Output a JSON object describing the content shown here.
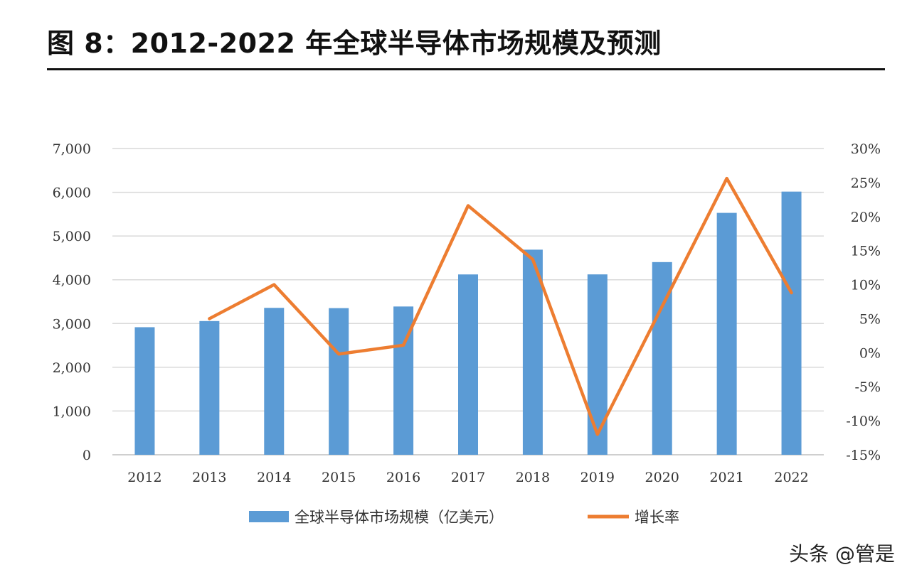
{
  "chart_data": {
    "type": "bar",
    "title": "图 8：2012-2022 年全球半导体市场规模及预测",
    "categories": [
      "2012",
      "2013",
      "2014",
      "2015",
      "2016",
      "2017",
      "2018",
      "2019",
      "2020",
      "2021",
      "2022"
    ],
    "series": [
      {
        "name": "全球半导体市场规模（亿美元）",
        "type": "bar",
        "axis": "left",
        "color": "#5b9bd5",
        "values": [
          2916,
          3056,
          3358,
          3352,
          3389,
          4122,
          4688,
          4123,
          4404,
          5529,
          6015
        ]
      },
      {
        "name": "增长率",
        "type": "line",
        "axis": "right",
        "color": "#ed7d31",
        "values": [
          null,
          5.0,
          10.0,
          -0.2,
          1.1,
          21.6,
          13.7,
          -12.0,
          6.8,
          25.6,
          8.8
        ]
      }
    ],
    "left_axis": {
      "ylim": [
        0,
        7000
      ],
      "ticks": [
        0,
        1000,
        2000,
        3000,
        4000,
        5000,
        6000,
        7000
      ],
      "tick_labels": [
        "0",
        "1,000",
        "2,000",
        "3,000",
        "4,000",
        "5,000",
        "6,000",
        "7,000"
      ]
    },
    "right_axis": {
      "ylim": [
        -15,
        30
      ],
      "ticks": [
        -15,
        -10,
        -5,
        0,
        5,
        10,
        15,
        20,
        25,
        30
      ],
      "tick_labels": [
        "-15%",
        "-10%",
        "-5%",
        "0%",
        "5%",
        "10%",
        "15%",
        "20%",
        "25%",
        "30%"
      ]
    },
    "grid": true,
    "legend_position": "bottom"
  },
  "watermark": "头条 @管是"
}
